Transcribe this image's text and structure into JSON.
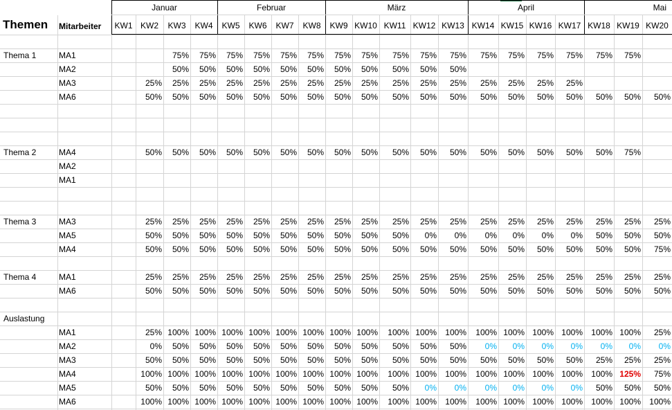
{
  "months": [
    "Januar",
    "Februar",
    "März",
    "April",
    "Mai"
  ],
  "header": {
    "themen": "Themen",
    "mitarbeiter": "Mitarbeiter",
    "weeks": [
      "KW1",
      "KW2",
      "KW3",
      "KW4",
      "KW5",
      "KW6",
      "KW7",
      "KW8",
      "KW9",
      "KW10",
      "KW11",
      "KW12",
      "KW13",
      "KW14",
      "KW15",
      "KW16",
      "KW17",
      "KW18",
      "KW19",
      "KW20"
    ]
  },
  "rows": [
    {
      "r": 3,
      "label": "Thema 1",
      "ma": "MA1",
      "v": [
        "",
        "",
        "75%",
        "75%",
        "75%",
        "75%",
        "75%",
        "75%",
        "75%",
        "75%",
        "75%",
        "75%",
        "75%",
        "75%",
        "75%",
        "75%",
        "75%",
        "75%",
        "75%",
        ""
      ]
    },
    {
      "r": 4,
      "ma": "MA2",
      "v": [
        "",
        "",
        "50%",
        "50%",
        "50%",
        "50%",
        "50%",
        "50%",
        "50%",
        "50%",
        "50%",
        "50%",
        "50%",
        "",
        "",
        "",
        "",
        "",
        "",
        ""
      ]
    },
    {
      "r": 5,
      "ma": "MA3",
      "v": [
        "",
        "25%",
        "25%",
        "25%",
        "25%",
        "25%",
        "25%",
        "25%",
        "25%",
        "25%",
        "25%",
        "25%",
        "25%",
        "25%",
        "25%",
        "25%",
        "25%",
        "",
        "",
        ""
      ]
    },
    {
      "r": 6,
      "ma": "MA6",
      "v": [
        "",
        "50%",
        "50%",
        "50%",
        "50%",
        "50%",
        "50%",
        "50%",
        "50%",
        "50%",
        "50%",
        "50%",
        "50%",
        "50%",
        "50%",
        "50%",
        "50%",
        "50%",
        "50%",
        "50%"
      ]
    },
    {
      "r": 10,
      "label": "Thema 2",
      "ma": "MA4",
      "v": [
        "",
        "50%",
        "50%",
        "50%",
        "50%",
        "50%",
        "50%",
        "50%",
        "50%",
        "50%",
        "50%",
        "50%",
        "50%",
        "50%",
        "50%",
        "50%",
        "50%",
        "50%",
        "75%",
        ""
      ]
    },
    {
      "r": 11,
      "ma": "MA2",
      "v": []
    },
    {
      "r": 12,
      "ma": "MA1",
      "v": []
    },
    {
      "r": 15,
      "label": "Thema 3",
      "ma": "MA3",
      "v": [
        "",
        "25%",
        "25%",
        "25%",
        "25%",
        "25%",
        "25%",
        "25%",
        "25%",
        "25%",
        "25%",
        "25%",
        "25%",
        "25%",
        "25%",
        "25%",
        "25%",
        "25%",
        "25%",
        "25%"
      ]
    },
    {
      "r": 16,
      "ma": "MA5",
      "v": [
        "",
        "50%",
        "50%",
        "50%",
        "50%",
        "50%",
        "50%",
        "50%",
        "50%",
        "50%",
        "50%",
        "0%",
        "0%",
        "0%",
        "0%",
        "0%",
        "0%",
        "50%",
        "50%",
        "50%"
      ]
    },
    {
      "r": 17,
      "ma": "MA4",
      "v": [
        "",
        "50%",
        "50%",
        "50%",
        "50%",
        "50%",
        "50%",
        "50%",
        "50%",
        "50%",
        "50%",
        "50%",
        "50%",
        "50%",
        "50%",
        "50%",
        "50%",
        "50%",
        "50%",
        "75%"
      ]
    },
    {
      "r": 19,
      "label": "Thema 4",
      "ma": "MA1",
      "v": [
        "",
        "25%",
        "25%",
        "25%",
        "25%",
        "25%",
        "25%",
        "25%",
        "25%",
        "25%",
        "25%",
        "25%",
        "25%",
        "25%",
        "25%",
        "25%",
        "25%",
        "25%",
        "25%",
        "25%"
      ]
    },
    {
      "r": 20,
      "ma": "MA6",
      "v": [
        "",
        "50%",
        "50%",
        "50%",
        "50%",
        "50%",
        "50%",
        "50%",
        "50%",
        "50%",
        "50%",
        "50%",
        "50%",
        "50%",
        "50%",
        "50%",
        "50%",
        "50%",
        "50%",
        "50%"
      ]
    },
    {
      "r": 22,
      "label": "Auslastung",
      "ma": "",
      "v": []
    },
    {
      "r": 23,
      "ma": "MA1",
      "v": [
        "",
        "25%",
        "100%",
        "100%",
        "100%",
        "100%",
        "100%",
        "100%",
        "100%",
        "100%",
        "100%",
        "100%",
        "100%",
        "100%",
        "100%",
        "100%",
        "100%",
        "100%",
        "100%",
        "25%"
      ]
    },
    {
      "r": 24,
      "ma": "MA2",
      "v": [
        "",
        "0%",
        "50%",
        "50%",
        "50%",
        "50%",
        "50%",
        "50%",
        "50%",
        "50%",
        "50%",
        "50%",
        "50%",
        "0%",
        "0%",
        "0%",
        "0%",
        "0%",
        "0%",
        "0%"
      ],
      "blue": [
        13,
        14,
        15,
        16,
        17,
        18,
        19
      ]
    },
    {
      "r": 25,
      "ma": "MA3",
      "v": [
        "",
        "50%",
        "50%",
        "50%",
        "50%",
        "50%",
        "50%",
        "50%",
        "50%",
        "50%",
        "50%",
        "50%",
        "50%",
        "50%",
        "50%",
        "50%",
        "50%",
        "25%",
        "25%",
        "25%"
      ]
    },
    {
      "r": 26,
      "ma": "MA4",
      "v": [
        "",
        "100%",
        "100%",
        "100%",
        "100%",
        "100%",
        "100%",
        "100%",
        "100%",
        "100%",
        "100%",
        "100%",
        "100%",
        "100%",
        "100%",
        "100%",
        "100%",
        "100%",
        "125%",
        "75%"
      ],
      "red": [
        18
      ]
    },
    {
      "r": 27,
      "ma": "MA5",
      "v": [
        "",
        "50%",
        "50%",
        "50%",
        "50%",
        "50%",
        "50%",
        "50%",
        "50%",
        "50%",
        "50%",
        "0%",
        "0%",
        "0%",
        "0%",
        "0%",
        "0%",
        "50%",
        "50%",
        "50%"
      ],
      "blue": [
        11,
        12,
        13,
        14,
        15,
        16
      ]
    },
    {
      "r": 28,
      "ma": "MA6",
      "v": [
        "",
        "100%",
        "100%",
        "100%",
        "100%",
        "100%",
        "100%",
        "100%",
        "100%",
        "100%",
        "100%",
        "100%",
        "100%",
        "100%",
        "100%",
        "100%",
        "100%",
        "100%",
        "100%",
        "100%"
      ]
    }
  ]
}
